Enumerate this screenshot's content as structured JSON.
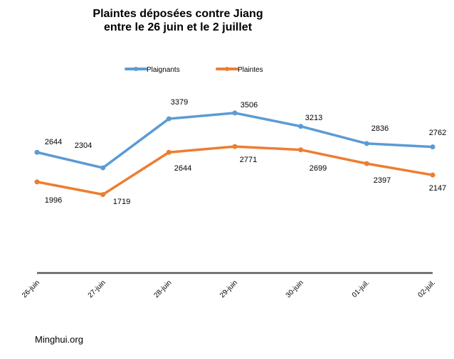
{
  "chart_data": {
    "type": "line",
    "title_line1": "Plaintes déposées contre Jiang",
    "title_line2": "entre le 26 juin et le 2 juillet",
    "categories": [
      "26-juin",
      "27-juin",
      "28-juin",
      "29-juin",
      "30-juin",
      "01-juil.",
      "02-juil."
    ],
    "series": [
      {
        "name": "Plaignants",
        "color": "#5B9BD5",
        "values": [
          2644,
          2304,
          3379,
          3506,
          3213,
          2836,
          2762
        ]
      },
      {
        "name": "Plaintes",
        "color": "#ED7D31",
        "values": [
          1996,
          1719,
          2644,
          2771,
          2699,
          2397,
          2147
        ]
      }
    ],
    "ylim": [
      0,
      3600
    ],
    "legend": "top",
    "grid": false,
    "data_labels": true
  },
  "source": "Minghui.org"
}
